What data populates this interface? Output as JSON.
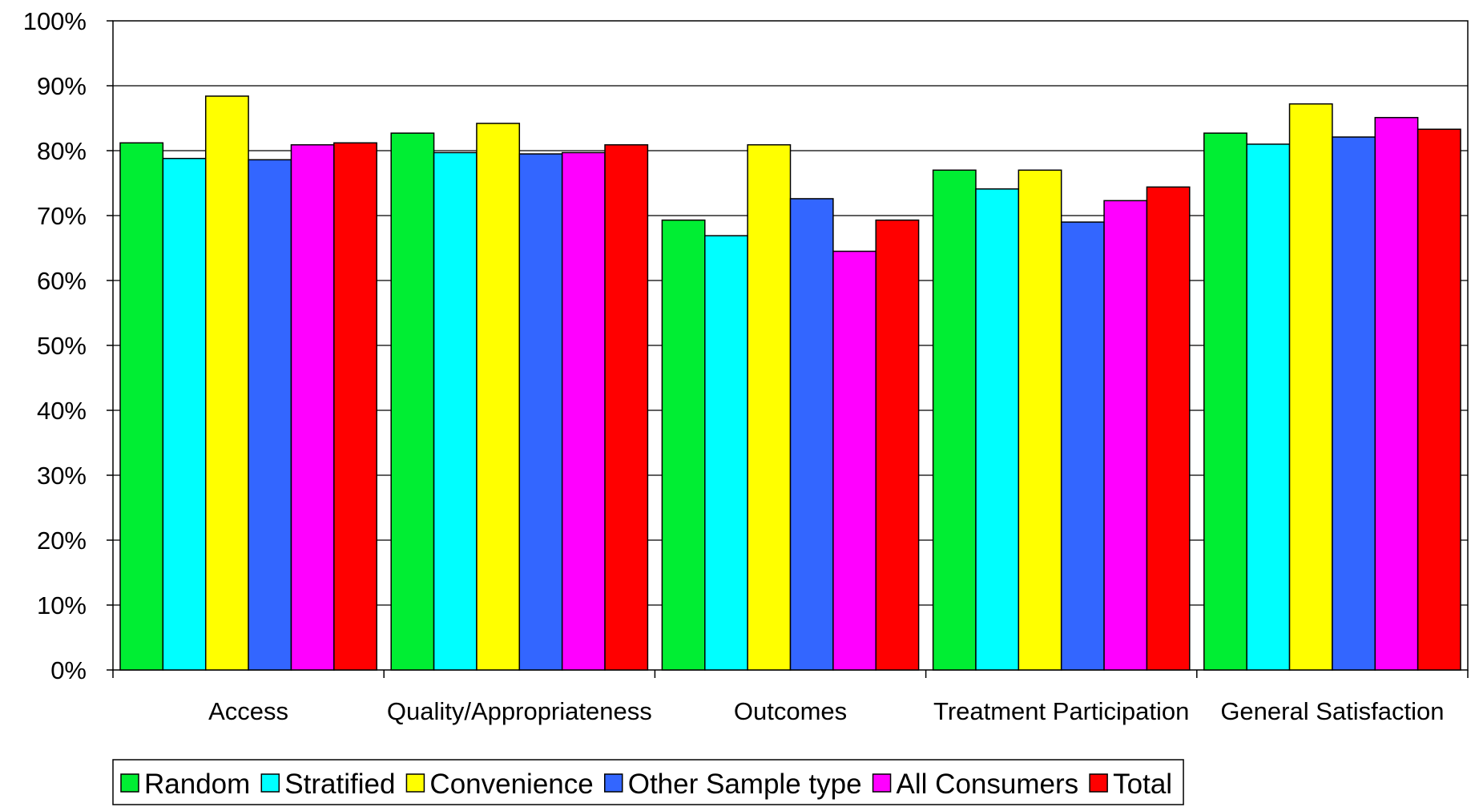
{
  "chart_data": {
    "type": "bar",
    "title": "",
    "xlabel": "",
    "ylabel": "",
    "ylim": [
      0,
      100
    ],
    "y_ticks": [
      0,
      10,
      20,
      30,
      40,
      50,
      60,
      70,
      80,
      90,
      100
    ],
    "y_tick_format": "{v}%",
    "grid": true,
    "legend_position": "bottom",
    "categories": [
      "Access",
      "Quality/Appropriateness",
      "Outcomes",
      "Treatment Participation",
      "General Satisfaction"
    ],
    "series": [
      {
        "name": "Random",
        "color": "#00ee33",
        "values": [
          81.2,
          82.7,
          69.3,
          77.0,
          82.7
        ]
      },
      {
        "name": "Stratified",
        "color": "#00ffff",
        "values": [
          78.8,
          79.7,
          66.9,
          74.1,
          81.0
        ]
      },
      {
        "name": "Convenience",
        "color": "#ffff00",
        "values": [
          88.4,
          84.2,
          80.9,
          77.0,
          87.2
        ]
      },
      {
        "name": "Other Sample type",
        "color": "#3366ff",
        "values": [
          78.6,
          79.5,
          72.6,
          69.0,
          82.1
        ]
      },
      {
        "name": "All Consumers",
        "color": "#ff00ff",
        "values": [
          80.9,
          79.7,
          64.5,
          72.3,
          85.1
        ]
      },
      {
        "name": "Total",
        "color": "#ff0000",
        "values": [
          81.2,
          80.9,
          69.3,
          74.4,
          83.3
        ]
      }
    ]
  }
}
